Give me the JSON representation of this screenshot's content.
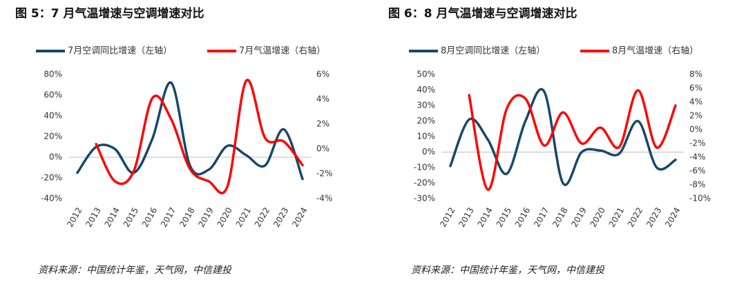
{
  "chart_data": [
    {
      "type": "line",
      "title": "图 5：7 月气温增速与空调增速对比",
      "source": "资料来源：中国统计年鉴，天气网，中信建投",
      "categories": [
        "2012",
        "2013",
        "2014",
        "2015",
        "2016",
        "2017",
        "2018",
        "2019",
        "2020",
        "2021",
        "2022",
        "2023",
        "2024"
      ],
      "series": [
        {
          "name": "7月空调同比增速（左轴）",
          "color": "#17476b",
          "axis": "y",
          "values": [
            -15,
            10,
            8,
            -15,
            18,
            72,
            -8,
            -12,
            11,
            2,
            -8,
            27,
            -21
          ]
        },
        {
          "name": "7月气温增速（右轴）",
          "color": "#ff0000",
          "axis": "y2",
          "values": [
            null,
            0.4,
            -2.6,
            -1.8,
            4.1,
            2.4,
            -1.6,
            -2.6,
            -3.0,
            5.5,
            0.9,
            0.6,
            -1.3
          ]
        }
      ],
      "ylim": [
        -40,
        80
      ],
      "yticks": [
        {
          "value": -40,
          "label": "-40%"
        },
        {
          "value": -20,
          "label": "-20%"
        },
        {
          "value": 0,
          "label": "0%"
        },
        {
          "value": 20,
          "label": "20%"
        },
        {
          "value": 40,
          "label": "40%"
        },
        {
          "value": 60,
          "label": "60%"
        },
        {
          "value": 80,
          "label": "80%"
        }
      ],
      "y2lim": [
        -4,
        6
      ],
      "y2ticks": [
        {
          "value": -4,
          "label": "-4%"
        },
        {
          "value": -2,
          "label": "-2%"
        },
        {
          "value": 0,
          "label": "0%"
        },
        {
          "value": 2,
          "label": "2%"
        },
        {
          "value": 4,
          "label": "4%"
        },
        {
          "value": 6,
          "label": "6%"
        }
      ],
      "legend": "top",
      "grid": false
    },
    {
      "type": "line",
      "title": "图 6：8 月气温增速与空调增速对比",
      "source": "资料来源：中国统计年鉴，天气网，中信建投",
      "categories": [
        "2012",
        "2013",
        "2014",
        "2015",
        "2016",
        "2017",
        "2018",
        "2019",
        "2020",
        "2021",
        "2022",
        "2023",
        "2024"
      ],
      "series": [
        {
          "name": "8月空调同比增速（左轴）",
          "color": "#17476b",
          "axis": "y",
          "values": [
            -9,
            21,
            8,
            -14,
            20,
            39,
            -20,
            0,
            1,
            -1,
            20,
            -10,
            -5
          ]
        },
        {
          "name": "8月气温增速（右轴）",
          "color": "#ff0000",
          "axis": "y2",
          "values": [
            null,
            5,
            -8.7,
            3,
            4.5,
            -2.3,
            2.5,
            -2,
            0.3,
            -2.5,
            5.7,
            -2.6,
            3.5
          ]
        }
      ],
      "ylim": [
        -30,
        50
      ],
      "yticks": [
        {
          "value": -30,
          "label": "-30%"
        },
        {
          "value": -20,
          "label": "-20%"
        },
        {
          "value": -10,
          "label": "-10%"
        },
        {
          "value": 0,
          "label": "0%"
        },
        {
          "value": 10,
          "label": "10%"
        },
        {
          "value": 20,
          "label": "20%"
        },
        {
          "value": 30,
          "label": "30%"
        },
        {
          "value": 40,
          "label": "40%"
        },
        {
          "value": 50,
          "label": "50%"
        }
      ],
      "y2lim": [
        -10,
        8
      ],
      "y2ticks": [
        {
          "value": -10,
          "label": "-10%"
        },
        {
          "value": -8,
          "label": "-8%"
        },
        {
          "value": -6,
          "label": "-6%"
        },
        {
          "value": -4,
          "label": "-4%"
        },
        {
          "value": -2,
          "label": "-2%"
        },
        {
          "value": 0,
          "label": "0%"
        },
        {
          "value": 2,
          "label": "2%"
        },
        {
          "value": 4,
          "label": "4%"
        },
        {
          "value": 6,
          "label": "6%"
        },
        {
          "value": 8,
          "label": "8%"
        }
      ],
      "legend": "top",
      "grid": false
    }
  ]
}
